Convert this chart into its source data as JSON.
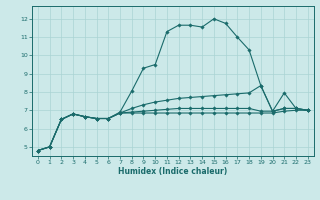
{
  "xlabel": "Humidex (Indice chaleur)",
  "xlim": [
    -0.5,
    23.5
  ],
  "ylim": [
    4.5,
    12.7
  ],
  "xticks": [
    0,
    1,
    2,
    3,
    4,
    5,
    6,
    7,
    8,
    9,
    10,
    11,
    12,
    13,
    14,
    15,
    16,
    17,
    18,
    19,
    20,
    21,
    22,
    23
  ],
  "yticks": [
    5,
    6,
    7,
    8,
    9,
    10,
    11,
    12
  ],
  "bg_color": "#cce9e9",
  "grid_color": "#aad4d4",
  "line_color": "#1a6b6b",
  "lines": [
    {
      "x": [
        0,
        1,
        2,
        3,
        4,
        5,
        6,
        7,
        8,
        9,
        10,
        11,
        12,
        13,
        14,
        15,
        16,
        17,
        18,
        19,
        20,
        21,
        22,
        23
      ],
      "y": [
        4.8,
        5.0,
        6.5,
        6.8,
        6.65,
        6.55,
        6.55,
        6.9,
        8.05,
        9.3,
        9.5,
        11.3,
        11.65,
        11.65,
        11.55,
        12.0,
        11.75,
        11.0,
        10.3,
        8.35,
        6.95,
        7.95,
        7.1,
        7.0
      ]
    },
    {
      "x": [
        0,
        1,
        2,
        3,
        4,
        5,
        6,
        7,
        8,
        9,
        10,
        11,
        12,
        13,
        14,
        15,
        16,
        17,
        18,
        19,
        20,
        21,
        22,
        23
      ],
      "y": [
        4.8,
        5.0,
        6.5,
        6.8,
        6.65,
        6.55,
        6.55,
        6.85,
        7.1,
        7.3,
        7.45,
        7.55,
        7.65,
        7.7,
        7.75,
        7.8,
        7.85,
        7.9,
        7.95,
        8.35,
        6.95,
        7.1,
        7.1,
        7.0
      ]
    },
    {
      "x": [
        0,
        1,
        2,
        3,
        4,
        5,
        6,
        7,
        8,
        9,
        10,
        11,
        12,
        13,
        14,
        15,
        16,
        17,
        18,
        19,
        20,
        21,
        22,
        23
      ],
      "y": [
        4.8,
        5.0,
        6.5,
        6.8,
        6.65,
        6.55,
        6.55,
        6.85,
        6.9,
        6.95,
        7.0,
        7.05,
        7.1,
        7.1,
        7.1,
        7.1,
        7.1,
        7.1,
        7.1,
        6.95,
        6.95,
        7.1,
        7.1,
        7.0
      ]
    },
    {
      "x": [
        0,
        1,
        2,
        3,
        4,
        5,
        6,
        7,
        8,
        9,
        10,
        11,
        12,
        13,
        14,
        15,
        16,
        17,
        18,
        19,
        20,
        21,
        22,
        23
      ],
      "y": [
        4.8,
        5.0,
        6.5,
        6.8,
        6.65,
        6.55,
        6.55,
        6.85,
        6.85,
        6.85,
        6.85,
        6.85,
        6.85,
        6.85,
        6.85,
        6.85,
        6.85,
        6.85,
        6.85,
        6.85,
        6.85,
        6.95,
        7.0,
        7.0
      ]
    }
  ]
}
